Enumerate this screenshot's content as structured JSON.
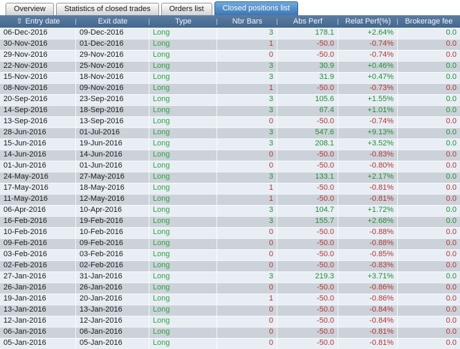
{
  "tabs": [
    {
      "label": "Overview",
      "active": false
    },
    {
      "label": "Statistics of closed trades",
      "active": false
    },
    {
      "label": "Orders list",
      "active": false
    },
    {
      "label": "Closed positions list",
      "active": true
    }
  ],
  "table": {
    "sort_icon": "⇧",
    "columns": [
      {
        "label": "Entry date",
        "sorted": "ascending"
      },
      {
        "label": "Exit date"
      },
      {
        "label": "Type"
      },
      {
        "label": "Nbr Bars"
      },
      {
        "label": "Abs Perf"
      },
      {
        "label": "Relat Perf(%)"
      },
      {
        "label": "Brokerage fee"
      }
    ],
    "rows": [
      {
        "entry_date": "06-Dec-2016",
        "exit_date": "09-Dec-2016",
        "type": "Long",
        "nbr_bars": "3",
        "abs_perf": "178.1",
        "relat_perf": "+2.64%",
        "brokerage_fee": "0.0",
        "sign": "pos"
      },
      {
        "entry_date": "30-Nov-2016",
        "exit_date": "01-Dec-2016",
        "type": "Long",
        "nbr_bars": "1",
        "abs_perf": "-50.0",
        "relat_perf": "-0.74%",
        "brokerage_fee": "0.0",
        "sign": "neg"
      },
      {
        "entry_date": "29-Nov-2016",
        "exit_date": "29-Nov-2016",
        "type": "Long",
        "nbr_bars": "0",
        "abs_perf": "-50.0",
        "relat_perf": "-0.74%",
        "brokerage_fee": "0.0",
        "sign": "neg"
      },
      {
        "entry_date": "22-Nov-2016",
        "exit_date": "25-Nov-2016",
        "type": "Long",
        "nbr_bars": "3",
        "abs_perf": "30.9",
        "relat_perf": "+0.46%",
        "brokerage_fee": "0.0",
        "sign": "pos"
      },
      {
        "entry_date": "15-Nov-2016",
        "exit_date": "18-Nov-2016",
        "type": "Long",
        "nbr_bars": "3",
        "abs_perf": "31.9",
        "relat_perf": "+0.47%",
        "brokerage_fee": "0.0",
        "sign": "pos"
      },
      {
        "entry_date": "08-Nov-2016",
        "exit_date": "09-Nov-2016",
        "type": "Long",
        "nbr_bars": "1",
        "abs_perf": "-50.0",
        "relat_perf": "-0.73%",
        "brokerage_fee": "0.0",
        "sign": "neg"
      },
      {
        "entry_date": "20-Sep-2016",
        "exit_date": "23-Sep-2016",
        "type": "Long",
        "nbr_bars": "3",
        "abs_perf": "105.6",
        "relat_perf": "+1.55%",
        "brokerage_fee": "0.0",
        "sign": "pos"
      },
      {
        "entry_date": "14-Sep-2016",
        "exit_date": "18-Sep-2016",
        "type": "Long",
        "nbr_bars": "3",
        "abs_perf": "67.4",
        "relat_perf": "+1.01%",
        "brokerage_fee": "0.0",
        "sign": "pos"
      },
      {
        "entry_date": "13-Sep-2016",
        "exit_date": "13-Sep-2016",
        "type": "Long",
        "nbr_bars": "0",
        "abs_perf": "-50.0",
        "relat_perf": "-0.74%",
        "brokerage_fee": "0.0",
        "sign": "neg"
      },
      {
        "entry_date": "28-Jun-2016",
        "exit_date": "01-Jul-2016",
        "type": "Long",
        "nbr_bars": "3",
        "abs_perf": "547.6",
        "relat_perf": "+9.13%",
        "brokerage_fee": "0.0",
        "sign": "pos"
      },
      {
        "entry_date": "15-Jun-2016",
        "exit_date": "19-Jun-2016",
        "type": "Long",
        "nbr_bars": "3",
        "abs_perf": "208.1",
        "relat_perf": "+3.52%",
        "brokerage_fee": "0.0",
        "sign": "pos"
      },
      {
        "entry_date": "14-Jun-2016",
        "exit_date": "14-Jun-2016",
        "type": "Long",
        "nbr_bars": "0",
        "abs_perf": "-50.0",
        "relat_perf": "-0.83%",
        "brokerage_fee": "0.0",
        "sign": "neg"
      },
      {
        "entry_date": "01-Jun-2016",
        "exit_date": "01-Jun-2016",
        "type": "Long",
        "nbr_bars": "0",
        "abs_perf": "-50.0",
        "relat_perf": "-0.80%",
        "brokerage_fee": "0.0",
        "sign": "neg"
      },
      {
        "entry_date": "24-May-2016",
        "exit_date": "27-May-2016",
        "type": "Long",
        "nbr_bars": "3",
        "abs_perf": "133.1",
        "relat_perf": "+2.17%",
        "brokerage_fee": "0.0",
        "sign": "pos"
      },
      {
        "entry_date": "17-May-2016",
        "exit_date": "18-May-2016",
        "type": "Long",
        "nbr_bars": "1",
        "abs_perf": "-50.0",
        "relat_perf": "-0.81%",
        "brokerage_fee": "0.0",
        "sign": "neg"
      },
      {
        "entry_date": "11-May-2016",
        "exit_date": "12-May-2016",
        "type": "Long",
        "nbr_bars": "1",
        "abs_perf": "-50.0",
        "relat_perf": "-0.81%",
        "brokerage_fee": "0.0",
        "sign": "neg"
      },
      {
        "entry_date": "06-Apr-2016",
        "exit_date": "10-Apr-2016",
        "type": "Long",
        "nbr_bars": "3",
        "abs_perf": "104.7",
        "relat_perf": "+1.72%",
        "brokerage_fee": "0.0",
        "sign": "pos"
      },
      {
        "entry_date": "16-Feb-2016",
        "exit_date": "19-Feb-2016",
        "type": "Long",
        "nbr_bars": "3",
        "abs_perf": "155.7",
        "relat_perf": "+2.68%",
        "brokerage_fee": "0.0",
        "sign": "pos"
      },
      {
        "entry_date": "10-Feb-2016",
        "exit_date": "10-Feb-2016",
        "type": "Long",
        "nbr_bars": "0",
        "abs_perf": "-50.0",
        "relat_perf": "-0.88%",
        "brokerage_fee": "0.0",
        "sign": "neg"
      },
      {
        "entry_date": "09-Feb-2016",
        "exit_date": "09-Feb-2016",
        "type": "Long",
        "nbr_bars": "0",
        "abs_perf": "-50.0",
        "relat_perf": "-0.88%",
        "brokerage_fee": "0.0",
        "sign": "neg"
      },
      {
        "entry_date": "03-Feb-2016",
        "exit_date": "03-Feb-2016",
        "type": "Long",
        "nbr_bars": "0",
        "abs_perf": "-50.0",
        "relat_perf": "-0.85%",
        "brokerage_fee": "0.0",
        "sign": "neg"
      },
      {
        "entry_date": "02-Feb-2016",
        "exit_date": "02-Feb-2016",
        "type": "Long",
        "nbr_bars": "0",
        "abs_perf": "-50.0",
        "relat_perf": "-0.83%",
        "brokerage_fee": "0.0",
        "sign": "neg"
      },
      {
        "entry_date": "27-Jan-2016",
        "exit_date": "31-Jan-2016",
        "type": "Long",
        "nbr_bars": "3",
        "abs_perf": "219.3",
        "relat_perf": "+3.71%",
        "brokerage_fee": "0.0",
        "sign": "pos"
      },
      {
        "entry_date": "26-Jan-2016",
        "exit_date": "26-Jan-2016",
        "type": "Long",
        "nbr_bars": "0",
        "abs_perf": "-50.0",
        "relat_perf": "-0.86%",
        "brokerage_fee": "0.0",
        "sign": "neg"
      },
      {
        "entry_date": "19-Jan-2016",
        "exit_date": "20-Jan-2016",
        "type": "Long",
        "nbr_bars": "1",
        "abs_perf": "-50.0",
        "relat_perf": "-0.86%",
        "brokerage_fee": "0.0",
        "sign": "neg"
      },
      {
        "entry_date": "13-Jan-2016",
        "exit_date": "13-Jan-2016",
        "type": "Long",
        "nbr_bars": "0",
        "abs_perf": "-50.0",
        "relat_perf": "-0.84%",
        "brokerage_fee": "0.0",
        "sign": "neg"
      },
      {
        "entry_date": "12-Jan-2016",
        "exit_date": "12-Jan-2016",
        "type": "Long",
        "nbr_bars": "0",
        "abs_perf": "-50.0",
        "relat_perf": "-0.84%",
        "brokerage_fee": "0.0",
        "sign": "neg"
      },
      {
        "entry_date": "06-Jan-2016",
        "exit_date": "06-Jan-2016",
        "type": "Long",
        "nbr_bars": "0",
        "abs_perf": "-50.0",
        "relat_perf": "-0.81%",
        "brokerage_fee": "0.0",
        "sign": "neg"
      },
      {
        "entry_date": "05-Jan-2016",
        "exit_date": "05-Jan-2016",
        "type": "Long",
        "nbr_bars": "0",
        "abs_perf": "-50.0",
        "relat_perf": "-0.81%",
        "brokerage_fee": "0.0",
        "sign": "neg"
      }
    ]
  },
  "colors": {
    "positive": "#1e9038",
    "negative": "#b23434",
    "type_long": "#2fa344",
    "header_top": "#5b7da2",
    "header_bottom": "#44678d",
    "active_tab_top": "#71a9da",
    "active_tab_bottom": "#3a76b4",
    "active_tab_border": "#2f6198",
    "tab_top": "#fdfdfd",
    "tab_bottom": "#d3d3d3",
    "row_light": "#e8eef4",
    "row_gray": "#ccd2d9"
  }
}
